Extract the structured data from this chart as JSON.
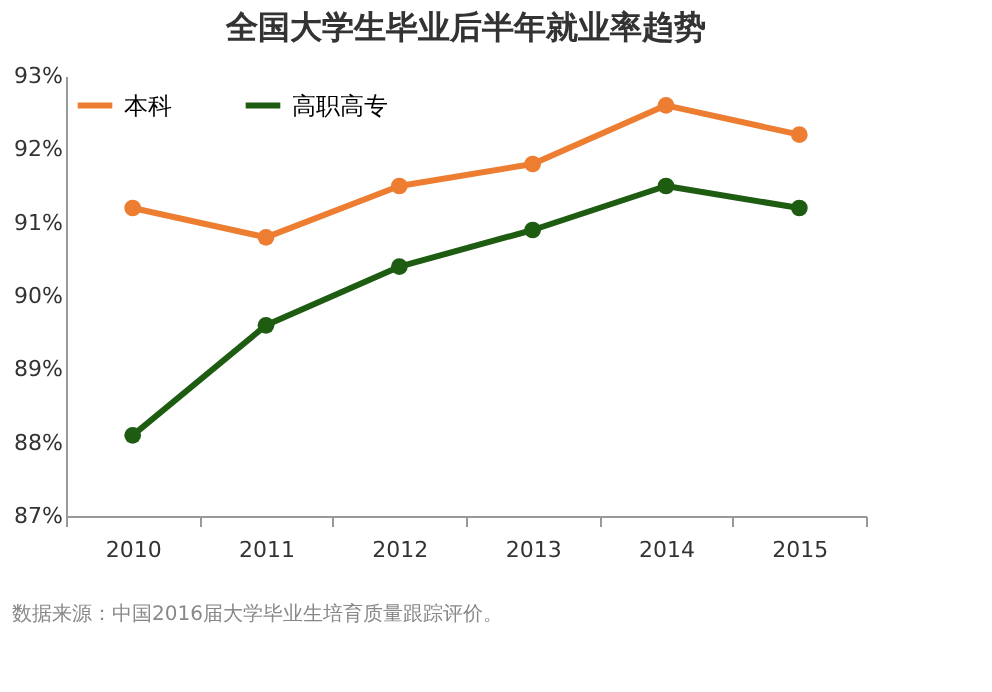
{
  "chart_data": {
    "type": "line",
    "title": "全国大学生毕业后半年就业率趋势",
    "categories": [
      "2010",
      "2011",
      "2012",
      "2013",
      "2014",
      "2015"
    ],
    "series": [
      {
        "name": "本科",
        "color": "#ed7d31",
        "values": [
          91.2,
          90.8,
          91.5,
          91.8,
          92.6,
          92.2
        ]
      },
      {
        "name": "高职高专",
        "color": "#1e5c12",
        "values": [
          88.1,
          89.6,
          90.4,
          90.9,
          91.5,
          91.2
        ]
      }
    ],
    "ylim": [
      87,
      93
    ],
    "yticks": [
      {
        "value": 87,
        "label": "87%"
      },
      {
        "value": 88,
        "label": "88%"
      },
      {
        "value": 89,
        "label": "89%"
      },
      {
        "value": 90,
        "label": "90%"
      },
      {
        "value": 91,
        "label": "91%"
      },
      {
        "value": 92,
        "label": "92%"
      },
      {
        "value": 93,
        "label": "93%"
      }
    ],
    "grid": false,
    "legend": "top left",
    "marker": "circle",
    "line_style": "solid",
    "annotations": [
      "数据来源：中国2016届大学毕业生培育质量跟踪评价。"
    ]
  }
}
